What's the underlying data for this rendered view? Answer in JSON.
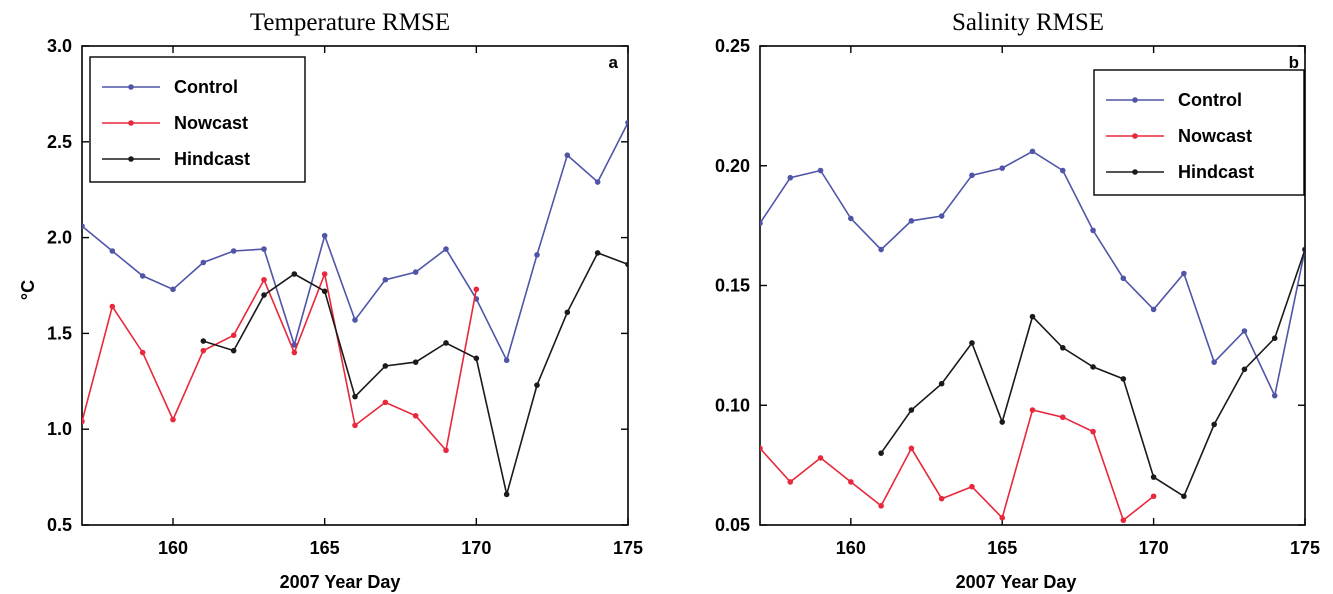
{
  "chart_data": [
    {
      "type": "line",
      "title": "Temperature RMSE",
      "panel_label": "a",
      "xlabel": "2007 Year Day",
      "ylabel": "°C",
      "xlim": [
        157,
        175
      ],
      "ylim": [
        0.5,
        3.0
      ],
      "xticks": [
        160,
        165,
        170,
        175
      ],
      "yticks": [
        "0.5",
        "1.0",
        "1.5",
        "2.0",
        "2.5",
        "3.0"
      ],
      "legend_position": "top-left",
      "grid": false,
      "series": [
        {
          "name": "Control",
          "color": "#5055a8",
          "x": [
            157,
            158,
            159,
            160,
            161,
            162,
            163,
            164,
            165,
            166,
            167,
            168,
            169,
            170,
            171,
            172,
            173,
            174,
            175
          ],
          "y": [
            2.06,
            1.93,
            1.8,
            1.73,
            1.87,
            1.93,
            1.94,
            1.44,
            2.01,
            1.57,
            1.78,
            1.82,
            1.94,
            1.68,
            1.36,
            1.91,
            2.43,
            2.29,
            2.6
          ]
        },
        {
          "name": "Nowcast",
          "color": "#e8283c",
          "x": [
            157,
            158,
            159,
            160,
            161,
            162,
            163,
            164,
            165,
            166,
            167,
            168,
            169,
            170
          ],
          "y": [
            1.04,
            1.64,
            1.4,
            1.05,
            1.41,
            1.49,
            1.78,
            1.4,
            1.81,
            1.02,
            1.14,
            1.07,
            0.89,
            1.73
          ]
        },
        {
          "name": "Hindcast",
          "color": "#1a1a1a",
          "x": [
            161,
            162,
            163,
            164,
            165,
            166,
            167,
            168,
            169,
            170,
            171,
            172,
            173,
            174,
            175
          ],
          "y": [
            1.46,
            1.41,
            1.7,
            1.81,
            1.72,
            1.17,
            1.33,
            1.35,
            1.45,
            1.37,
            0.66,
            1.23,
            1.61,
            1.92,
            1.86
          ]
        }
      ]
    },
    {
      "type": "line",
      "title": "Salinity RMSE",
      "panel_label": "b",
      "xlabel": "2007 Year Day",
      "ylabel": "",
      "xlim": [
        157,
        175
      ],
      "ylim": [
        0.05,
        0.25
      ],
      "xticks": [
        160,
        165,
        170,
        175
      ],
      "yticks": [
        "0.05",
        "0.10",
        "0.15",
        "0.20",
        "0.25"
      ],
      "legend_position": "top-right",
      "grid": false,
      "series": [
        {
          "name": "Control",
          "color": "#5055a8",
          "x": [
            157,
            158,
            159,
            160,
            161,
            162,
            163,
            164,
            165,
            166,
            167,
            168,
            169,
            170,
            171,
            172,
            173,
            174,
            175
          ],
          "y": [
            0.176,
            0.195,
            0.198,
            0.178,
            0.165,
            0.177,
            0.179,
            0.196,
            0.199,
            0.206,
            0.198,
            0.173,
            0.153,
            0.14,
            0.155,
            0.118,
            0.131,
            0.104,
            0.165
          ]
        },
        {
          "name": "Nowcast",
          "color": "#e8283c",
          "x": [
            157,
            158,
            159,
            160,
            161,
            162,
            163,
            164,
            165,
            166,
            167,
            168,
            169,
            170
          ],
          "y": [
            0.082,
            0.068,
            0.078,
            0.068,
            0.058,
            0.082,
            0.061,
            0.066,
            0.053,
            0.098,
            0.095,
            0.089,
            0.052,
            0.062
          ]
        },
        {
          "name": "Hindcast",
          "color": "#1a1a1a",
          "x": [
            161,
            162,
            163,
            164,
            165,
            166,
            167,
            168,
            169,
            170,
            171,
            172,
            173,
            174,
            175
          ],
          "y": [
            0.08,
            0.098,
            0.109,
            0.126,
            0.093,
            0.137,
            0.124,
            0.116,
            0.111,
            0.07,
            0.062,
            0.092,
            0.115,
            0.128,
            0.165
          ]
        }
      ]
    }
  ]
}
